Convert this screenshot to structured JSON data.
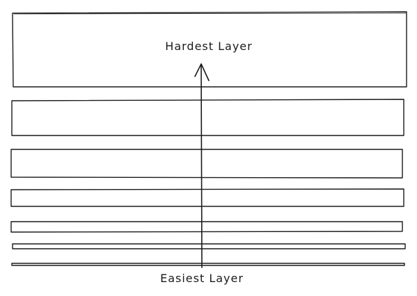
{
  "labels": {
    "top": "Hardest Layer",
    "bottom": "Easiest Layer"
  },
  "layers": [
    {
      "name": "layer-1"
    },
    {
      "name": "layer-2"
    },
    {
      "name": "layer-3"
    },
    {
      "name": "layer-4"
    },
    {
      "name": "layer-5"
    },
    {
      "name": "layer-6"
    },
    {
      "name": "layer-7"
    }
  ],
  "colors": {
    "stroke": "#1a1a1a",
    "background": "#ffffff"
  }
}
